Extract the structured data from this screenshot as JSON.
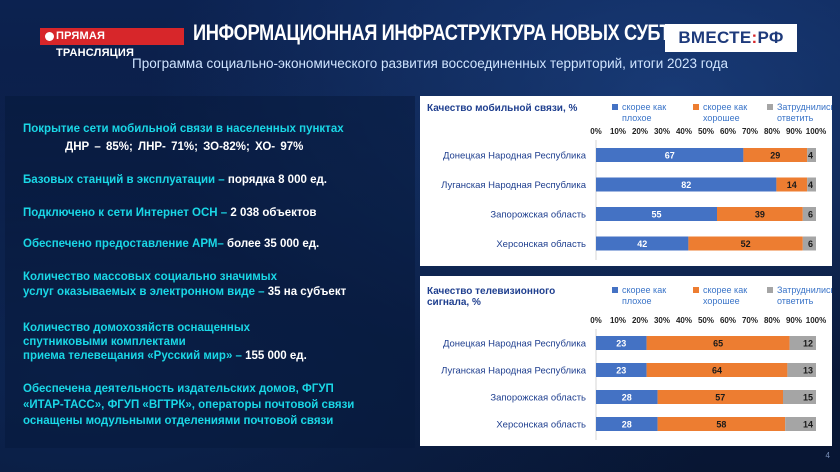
{
  "header": {
    "live_label": "ПРЯМАЯ ТРАНСЛЯЦИЯ",
    "title": "ИНФОРМАЦИОННАЯ ИНФРАСТРУКТУРА НОВЫХ СУБЪЕКТОВ",
    "logo_left": "ВМЕСТЕ",
    "logo_sep": ":",
    "logo_right": "РФ",
    "subtitle": "Программа социально-экономического развития воссоединенных территорий, итоги 2023 года"
  },
  "facts": [
    {
      "label": "Покрытие сети мобильной связи в населенных пунктах",
      "value": ""
    },
    {
      "label": "Базовых станций в эксплуатации – ",
      "value": "порядка 8 000 ед."
    },
    {
      "label": "Подключено к сети Интернет ОСН – ",
      "value": "2 038 объектов"
    },
    {
      "label": "Обеспечено предоставление АРМ– ",
      "value": "более 35 000 ед."
    },
    {
      "label": "Количество массовых социально значимых",
      "value": ""
    },
    {
      "label": "услуг оказываемых в электронном виде – ",
      "value": "35 на субъект"
    },
    {
      "label": "Количество домохозяйств оснащенных",
      "value": ""
    },
    {
      "label": "спутниковыми комплектами",
      "value": ""
    },
    {
      "label": "приема телевещания «Русский мир» – ",
      "value": "155 000 ед."
    },
    {
      "label": "Обеспечена деятельность издательских домов, ФГУП",
      "value": ""
    },
    {
      "label": "«ИТАР-ТАСС», ФГУП «ВГТРК», операторы почтовой связи",
      "value": ""
    },
    {
      "label": "оснащены модульными отделениями почтовой связи",
      "value": ""
    }
  ],
  "coverage_line": "ДНР – 85%;   ЛНР- 71%;    ЗО-82%;   ХО- 97%",
  "page_number": "4",
  "colors": {
    "bad": "#4472c4",
    "good": "#ed7d31",
    "unsure": "#a5a5a5",
    "accent": "#1ad7e6"
  },
  "chart_data": [
    {
      "type": "bar",
      "stacked": true,
      "orientation": "horizontal",
      "title": "Качество мобильной связи, %",
      "categories": [
        "Донецкая Народная Республика",
        "Луганская Народная Республика",
        "Запорожская область",
        "Херсонская область"
      ],
      "series": [
        {
          "name": "скорее как плохое",
          "values": [
            67,
            82,
            55,
            42
          ]
        },
        {
          "name": "скорее как хорошее",
          "values": [
            29,
            14,
            39,
            52
          ]
        },
        {
          "name": "Затруднились ответить",
          "values": [
            4,
            4,
            6,
            6
          ]
        }
      ],
      "ticks": [
        "0%",
        "10%",
        "20%",
        "30%",
        "40%",
        "50%",
        "60%",
        "70%",
        "80%",
        "90%",
        "100%"
      ],
      "xlim": [
        0,
        100
      ],
      "legend": "top"
    },
    {
      "type": "bar",
      "stacked": true,
      "orientation": "horizontal",
      "title": "Качество телевизионного сигнала, %",
      "categories": [
        "Донецкая Народная Республика",
        "Луганская Народная Республика",
        "Запорожская область",
        "Херсонская область"
      ],
      "series": [
        {
          "name": "скорее как плохое",
          "values": [
            23,
            23,
            28,
            28
          ]
        },
        {
          "name": "скорее как хорошее",
          "values": [
            65,
            64,
            57,
            58
          ]
        },
        {
          "name": "Затруднились ответить",
          "values": [
            12,
            13,
            15,
            14
          ]
        }
      ],
      "ticks": [
        "0%",
        "10%",
        "20%",
        "30%",
        "40%",
        "50%",
        "60%",
        "70%",
        "80%",
        "90%",
        "100%"
      ],
      "xlim": [
        0,
        100
      ],
      "legend": "top"
    }
  ]
}
